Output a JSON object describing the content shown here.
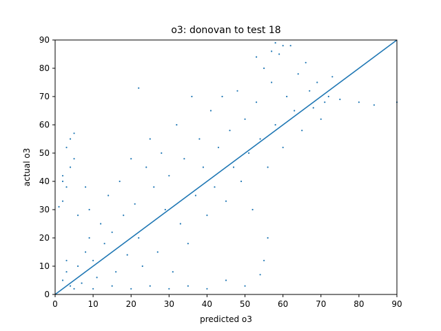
{
  "chart_data": {
    "type": "scatter",
    "title": "o3: donovan to test 18",
    "xlabel": "predicted o3",
    "ylabel": "actual o3",
    "xlim": [
      0,
      90
    ],
    "ylim": [
      0,
      90
    ],
    "xticks": [
      0,
      10,
      20,
      30,
      40,
      50,
      60,
      70,
      80,
      90
    ],
    "yticks": [
      0,
      10,
      20,
      30,
      40,
      50,
      60,
      70,
      80,
      90
    ],
    "grid": false,
    "color": "#1f77b4",
    "series": [
      {
        "kind": "points",
        "points": [
          [
            2,
            40
          ],
          [
            2,
            42
          ],
          [
            3,
            38
          ],
          [
            1,
            31
          ],
          [
            2,
            33
          ],
          [
            4,
            45
          ],
          [
            3,
            52
          ],
          [
            4,
            55
          ],
          [
            5,
            48
          ],
          [
            5,
            57
          ],
          [
            2,
            5
          ],
          [
            3,
            8
          ],
          [
            3,
            12
          ],
          [
            4,
            3
          ],
          [
            5,
            2
          ],
          [
            6,
            10
          ],
          [
            7,
            4
          ],
          [
            8,
            15
          ],
          [
            9,
            20
          ],
          [
            6,
            28
          ],
          [
            8,
            38
          ],
          [
            9,
            30
          ],
          [
            10,
            12
          ],
          [
            11,
            6
          ],
          [
            12,
            25
          ],
          [
            13,
            18
          ],
          [
            14,
            35
          ],
          [
            15,
            22
          ],
          [
            16,
            8
          ],
          [
            17,
            40
          ],
          [
            18,
            28
          ],
          [
            19,
            14
          ],
          [
            20,
            48
          ],
          [
            21,
            32
          ],
          [
            22,
            20
          ],
          [
            22,
            73
          ],
          [
            23,
            10
          ],
          [
            24,
            45
          ],
          [
            25,
            55
          ],
          [
            26,
            38
          ],
          [
            27,
            15
          ],
          [
            28,
            50
          ],
          [
            29,
            30
          ],
          [
            30,
            42
          ],
          [
            31,
            8
          ],
          [
            32,
            60
          ],
          [
            33,
            25
          ],
          [
            34,
            48
          ],
          [
            35,
            18
          ],
          [
            36,
            70
          ],
          [
            37,
            35
          ],
          [
            38,
            55
          ],
          [
            39,
            45
          ],
          [
            40,
            28
          ],
          [
            41,
            65
          ],
          [
            42,
            38
          ],
          [
            43,
            52
          ],
          [
            44,
            70
          ],
          [
            45,
            33
          ],
          [
            46,
            58
          ],
          [
            47,
            45
          ],
          [
            48,
            72
          ],
          [
            49,
            40
          ],
          [
            50,
            62
          ],
          [
            51,
            50
          ],
          [
            52,
            30
          ],
          [
            53,
            68
          ],
          [
            54,
            55
          ],
          [
            55,
            80
          ],
          [
            56,
            45
          ],
          [
            57,
            75
          ],
          [
            58,
            60
          ],
          [
            59,
            85
          ],
          [
            60,
            52
          ],
          [
            61,
            70
          ],
          [
            62,
            88
          ],
          [
            63,
            65
          ],
          [
            64,
            78
          ],
          [
            65,
            58
          ],
          [
            66,
            82
          ],
          [
            67,
            72
          ],
          [
            68,
            66
          ],
          [
            69,
            75
          ],
          [
            70,
            62
          ],
          [
            71,
            68
          ],
          [
            72,
            70
          ],
          [
            73,
            77
          ],
          [
            75,
            69
          ],
          [
            80,
            68
          ],
          [
            84,
            67
          ],
          [
            90,
            68
          ],
          [
            58,
            89
          ],
          [
            60,
            88
          ],
          [
            57,
            86
          ],
          [
            53,
            84
          ],
          [
            54,
            7
          ],
          [
            55,
            12
          ],
          [
            56,
            20
          ],
          [
            50,
            3
          ],
          [
            45,
            5
          ],
          [
            40,
            2
          ],
          [
            35,
            3
          ],
          [
            30,
            2
          ],
          [
            25,
            3
          ],
          [
            20,
            2
          ],
          [
            15,
            3
          ],
          [
            10,
            2
          ]
        ]
      },
      {
        "kind": "line",
        "points": [
          [
            0,
            0
          ],
          [
            90,
            90
          ]
        ]
      }
    ]
  }
}
